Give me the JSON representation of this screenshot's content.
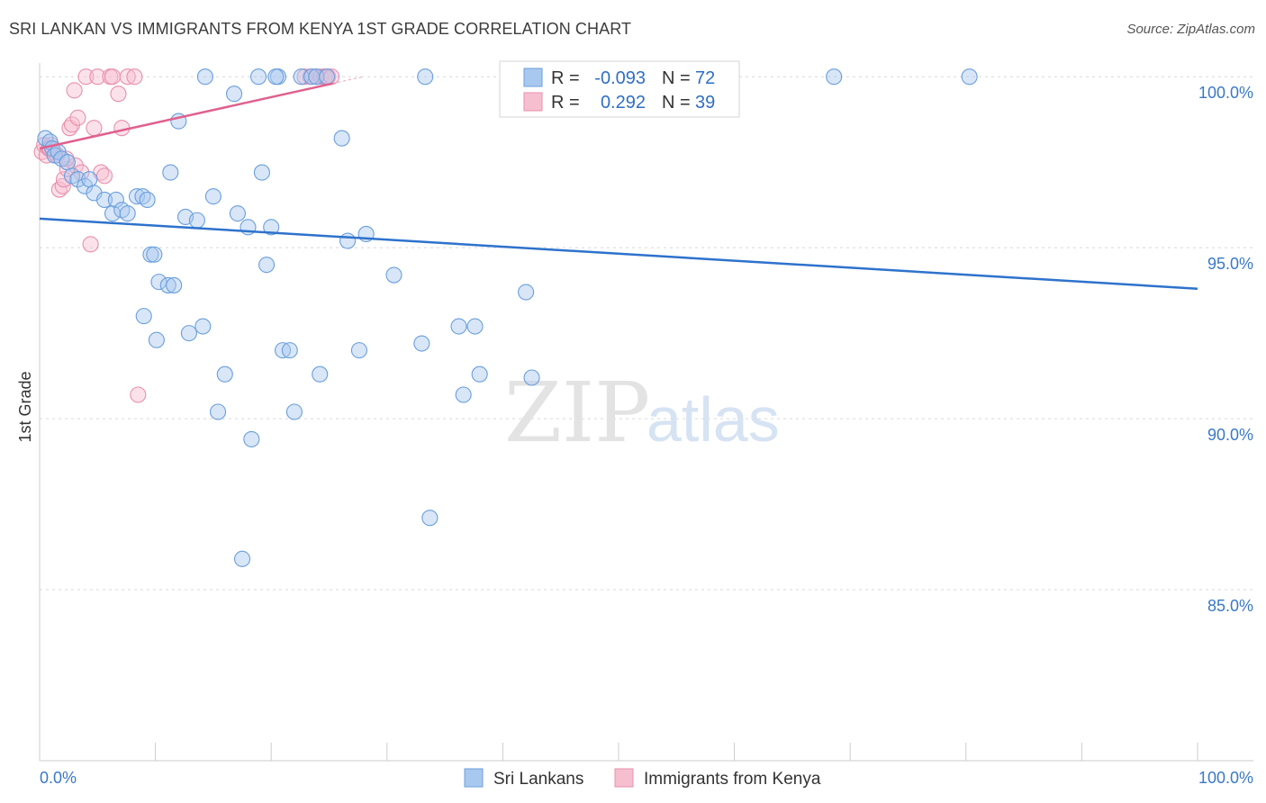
{
  "title": "SRI LANKAN VS IMMIGRANTS FROM KENYA 1ST GRADE CORRELATION CHART",
  "source": "Source: ZipAtlas.com",
  "watermark": {
    "zip": "ZIP",
    "atlas": "atlas"
  },
  "colors": {
    "blue_fill": "#a9c8ef",
    "blue_stroke": "#6a9fdc",
    "blue_line": "#2e72cc",
    "pink_fill": "#f6bfd0",
    "pink_stroke": "#e98fae",
    "pink_line": "#e0608e",
    "grid": "#d8d8d8",
    "axis_text": "#3a78c8"
  },
  "stats_box": {
    "rows": [
      {
        "r_label": "R =",
        "r_value": "-0.093",
        "n_label": "N =",
        "n_value": "72",
        "series": "blue"
      },
      {
        "r_label": "R =",
        "r_value": "0.292",
        "n_label": "N =",
        "n_value": "39",
        "series": "pink"
      }
    ]
  },
  "legend": {
    "items": [
      {
        "label": "Sri Lankans",
        "series": "blue"
      },
      {
        "label": "Immigrants from Kenya",
        "series": "pink"
      }
    ]
  },
  "chart_data": {
    "type": "scatter",
    "title": "SRI LANKAN VS IMMIGRANTS FROM KENYA 1ST GRADE CORRELATION CHART",
    "xlabel": "",
    "ylabel": "1st Grade",
    "xlim": [
      0,
      100
    ],
    "ylim": [
      80.0,
      100.4
    ],
    "x_tick_labels": [
      "0.0%",
      "100.0%"
    ],
    "y_ticks": [
      85,
      90,
      95,
      100
    ],
    "y_tick_labels": [
      "85.0%",
      "90.0%",
      "95.0%",
      "100.0%"
    ],
    "series": [
      {
        "name": "Sri Lankans",
        "color": "blue",
        "r": -0.093,
        "n": 72,
        "trend": {
          "x": [
            0,
            100
          ],
          "y": [
            95.85,
            93.8
          ]
        },
        "points": [
          [
            0.5,
            98.2
          ],
          [
            0.9,
            98.1
          ],
          [
            1.1,
            97.9
          ],
          [
            1.3,
            97.7
          ],
          [
            1.6,
            97.8
          ],
          [
            1.9,
            97.6
          ],
          [
            2.4,
            97.5
          ],
          [
            2.8,
            97.1
          ],
          [
            3.3,
            97.0
          ],
          [
            3.9,
            96.8
          ],
          [
            4.3,
            97.0
          ],
          [
            4.7,
            96.6
          ],
          [
            5.6,
            96.4
          ],
          [
            6.3,
            96.0
          ],
          [
            6.6,
            96.4
          ],
          [
            7.1,
            96.1
          ],
          [
            7.6,
            96.0
          ],
          [
            8.4,
            96.5
          ],
          [
            8.9,
            96.5
          ],
          [
            9.3,
            96.4
          ],
          [
            9.0,
            93.0
          ],
          [
            9.6,
            94.8
          ],
          [
            9.9,
            94.8
          ],
          [
            10.1,
            92.3
          ],
          [
            10.3,
            94.0
          ],
          [
            11.1,
            93.9
          ],
          [
            11.6,
            93.9
          ],
          [
            11.3,
            97.2
          ],
          [
            12.0,
            98.7
          ],
          [
            12.6,
            95.9
          ],
          [
            12.9,
            92.5
          ],
          [
            13.6,
            95.8
          ],
          [
            14.1,
            92.7
          ],
          [
            14.3,
            100.0
          ],
          [
            15.0,
            96.5
          ],
          [
            15.4,
            90.2
          ],
          [
            16.0,
            91.3
          ],
          [
            16.8,
            99.5
          ],
          [
            17.1,
            96.0
          ],
          [
            17.5,
            85.9
          ],
          [
            18.0,
            95.6
          ],
          [
            18.3,
            89.4
          ],
          [
            18.9,
            100.0
          ],
          [
            19.2,
            97.2
          ],
          [
            19.6,
            94.5
          ],
          [
            20.0,
            95.6
          ],
          [
            20.6,
            100.0
          ],
          [
            21.0,
            92.0
          ],
          [
            21.6,
            92.0
          ],
          [
            22.0,
            90.2
          ],
          [
            22.6,
            100.0
          ],
          [
            23.5,
            100.0
          ],
          [
            23.9,
            100.0
          ],
          [
            24.2,
            91.3
          ],
          [
            24.8,
            100.0
          ],
          [
            26.1,
            98.2
          ],
          [
            26.6,
            95.2
          ],
          [
            27.6,
            92.0
          ],
          [
            28.2,
            95.4
          ],
          [
            30.6,
            94.2
          ],
          [
            33.0,
            92.2
          ],
          [
            33.3,
            100.0
          ],
          [
            33.7,
            87.1
          ],
          [
            36.2,
            92.7
          ],
          [
            36.6,
            90.7
          ],
          [
            38.0,
            91.3
          ],
          [
            37.6,
            92.7
          ],
          [
            42.0,
            93.7
          ],
          [
            42.5,
            91.2
          ],
          [
            68.6,
            100.0
          ],
          [
            80.3,
            100.0
          ],
          [
            20.4,
            100.0
          ]
        ]
      },
      {
        "name": "Immigrants from Kenya",
        "color": "pink",
        "r": 0.292,
        "n": 39,
        "trend": {
          "x": [
            0,
            25.3
          ],
          "y": [
            97.9,
            99.8
          ]
        },
        "points": [
          [
            0.2,
            97.8
          ],
          [
            0.4,
            98.0
          ],
          [
            0.6,
            97.7
          ],
          [
            0.8,
            97.9
          ],
          [
            1.0,
            98.0
          ],
          [
            1.2,
            97.8
          ],
          [
            1.5,
            97.7
          ],
          [
            1.7,
            96.7
          ],
          [
            2.0,
            96.8
          ],
          [
            2.1,
            97.0
          ],
          [
            2.4,
            97.3
          ],
          [
            2.6,
            98.5
          ],
          [
            2.8,
            98.6
          ],
          [
            3.0,
            99.6
          ],
          [
            3.1,
            97.4
          ],
          [
            3.3,
            98.8
          ],
          [
            3.6,
            97.2
          ],
          [
            4.0,
            100.0
          ],
          [
            4.4,
            95.1
          ],
          [
            4.7,
            98.5
          ],
          [
            5.0,
            100.0
          ],
          [
            5.3,
            97.2
          ],
          [
            5.6,
            97.1
          ],
          [
            6.1,
            100.0
          ],
          [
            6.3,
            100.0
          ],
          [
            6.8,
            99.5
          ],
          [
            7.1,
            98.5
          ],
          [
            7.6,
            100.0
          ],
          [
            8.2,
            100.0
          ],
          [
            8.5,
            90.7
          ],
          [
            22.9,
            100.0
          ],
          [
            23.4,
            100.0
          ],
          [
            23.9,
            100.0
          ],
          [
            24.3,
            100.0
          ],
          [
            24.6,
            100.0
          ],
          [
            24.9,
            100.0
          ],
          [
            25.2,
            100.0
          ],
          [
            2.3,
            97.6
          ],
          [
            0.9,
            97.9
          ]
        ]
      }
    ]
  }
}
